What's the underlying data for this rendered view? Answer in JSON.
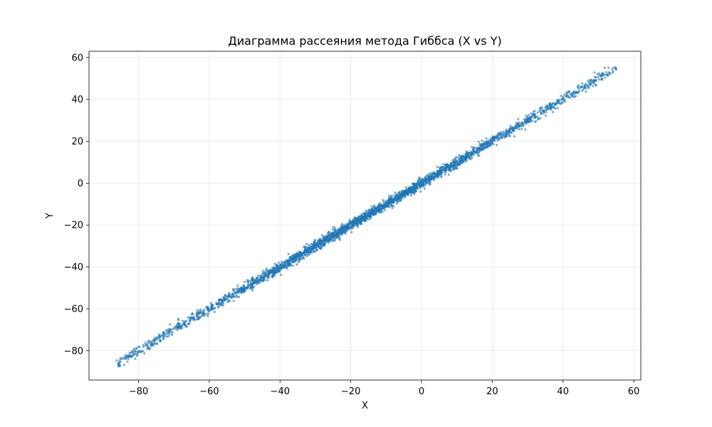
{
  "chart_data": {
    "type": "scatter",
    "title": "Диаграмма рассеяния метода Гиббса (X vs Y)",
    "xlabel": "X",
    "ylabel": "Y",
    "xlim": [
      -94,
      62
    ],
    "ylim": [
      -94,
      63
    ],
    "xticks": [
      -80,
      -60,
      -40,
      -20,
      0,
      20,
      40,
      60
    ],
    "yticks": [
      -80,
      -60,
      -40,
      -20,
      0,
      20,
      40,
      60
    ],
    "xtick_labels": [
      "−80",
      "−60",
      "−40",
      "−20",
      "0",
      "20",
      "40",
      "60"
    ],
    "ytick_labels": [
      "−80",
      "−60",
      "−40",
      "−20",
      "0",
      "20",
      "40",
      "60"
    ],
    "grid": true,
    "marker_color": "#1f77b4",
    "marker_opacity": 0.6,
    "series": [
      {
        "x_range": [
          -86,
          55
        ],
        "relationship": "y ≈ x",
        "approx_spread": 1.5,
        "points": [
          [
            -86.2,
            -84.6
          ],
          [
            -85.1,
            -85.3
          ],
          [
            -84.0,
            -86.8
          ],
          [
            -83.5,
            -82.9
          ],
          [
            -82.1,
            -82.4
          ],
          [
            -80.9,
            -81.6
          ],
          [
            -79.7,
            -78.3
          ],
          [
            -78.8,
            -80.1
          ],
          [
            -78.0,
            -77.5
          ],
          [
            -77.2,
            -78.6
          ],
          [
            -76.1,
            -76.9
          ],
          [
            -74.8,
            -73.7
          ],
          [
            -73.9,
            -75.2
          ],
          [
            -72.5,
            -72.9
          ],
          [
            -71.2,
            -70.4
          ],
          [
            -70.4,
            -71.5
          ],
          [
            -69.1,
            -68.2
          ],
          [
            -68.0,
            -69.4
          ],
          [
            -66.8,
            -65.9
          ],
          [
            -65.9,
            -67.1
          ],
          [
            -64.7,
            -64.3
          ],
          [
            -63.5,
            -62.4
          ],
          [
            -62.6,
            -63.8
          ],
          [
            -61.4,
            -60.5
          ],
          [
            -60.2,
            -61.3
          ],
          [
            -59.1,
            -58.6
          ],
          [
            -58.0,
            -57.2
          ],
          [
            -56.8,
            -58.1
          ],
          [
            -55.7,
            -54.9
          ],
          [
            -54.6,
            -55.8
          ],
          [
            -53.4,
            -52.7
          ],
          [
            -52.3,
            -53.6
          ],
          [
            -51.1,
            -50.2
          ],
          [
            -50.0,
            -51.4
          ],
          [
            -48.9,
            -48.1
          ],
          [
            -47.7,
            -47.9
          ],
          [
            -46.6,
            -45.3
          ],
          [
            -45.4,
            -46.7
          ],
          [
            -44.3,
            -43.8
          ],
          [
            -43.2,
            -44.5
          ],
          [
            -42.0,
            -41.2
          ],
          [
            -40.9,
            -42.3
          ],
          [
            -39.8,
            -39.1
          ],
          [
            -38.6,
            -37.4
          ],
          [
            -37.5,
            -38.8
          ],
          [
            -36.4,
            -35.9
          ],
          [
            -35.2,
            -36.6
          ],
          [
            -34.1,
            -33.3
          ],
          [
            -33.0,
            -34.2
          ],
          [
            -31.8,
            -31.0
          ],
          [
            -30.7,
            -31.9
          ],
          [
            -29.6,
            -28.8
          ],
          [
            -28.4,
            -29.7
          ],
          [
            -27.3,
            -26.5
          ],
          [
            -26.2,
            -27.4
          ],
          [
            -25.0,
            -24.2
          ],
          [
            -23.9,
            -25.1
          ],
          [
            -22.8,
            -21.9
          ],
          [
            -21.6,
            -22.9
          ],
          [
            -20.5,
            -19.8
          ],
          [
            -19.4,
            -20.6
          ],
          [
            -18.2,
            -17.3
          ],
          [
            -17.1,
            -18.4
          ],
          [
            -16.0,
            -15.2
          ],
          [
            -14.8,
            -16.1
          ],
          [
            -13.7,
            -12.9
          ],
          [
            -12.6,
            -13.8
          ],
          [
            -11.4,
            -10.6
          ],
          [
            -10.3,
            -11.5
          ],
          [
            -9.2,
            -8.4
          ],
          [
            -8.0,
            -9.3
          ],
          [
            -6.9,
            -6.1
          ],
          [
            -5.8,
            -7.0
          ],
          [
            -4.6,
            -3.8
          ],
          [
            -3.5,
            -4.7
          ],
          [
            -2.4,
            -1.6
          ],
          [
            -1.2,
            -2.4
          ],
          [
            0.0,
            0.6
          ],
          [
            1.2,
            0.4
          ],
          [
            2.3,
            3.1
          ],
          [
            3.4,
            2.2
          ],
          [
            4.6,
            5.4
          ],
          [
            5.7,
            4.5
          ],
          [
            6.8,
            7.6
          ],
          [
            8.0,
            6.8
          ],
          [
            9.1,
            9.9
          ],
          [
            10.2,
            9.0
          ],
          [
            11.4,
            12.2
          ],
          [
            12.5,
            11.3
          ],
          [
            13.6,
            14.4
          ],
          [
            14.8,
            13.6
          ],
          [
            15.9,
            16.7
          ],
          [
            17.0,
            15.8
          ],
          [
            18.2,
            19.0
          ],
          [
            19.3,
            18.1
          ],
          [
            20.4,
            21.2
          ],
          [
            21.6,
            20.4
          ],
          [
            22.7,
            23.5
          ],
          [
            23.8,
            22.6
          ],
          [
            25.0,
            25.8
          ],
          [
            26.1,
            24.9
          ],
          [
            27.2,
            28.0
          ],
          [
            28.4,
            27.2
          ],
          [
            29.5,
            30.3
          ],
          [
            30.6,
            29.4
          ],
          [
            31.8,
            32.6
          ],
          [
            32.9,
            31.7
          ],
          [
            34.0,
            34.8
          ],
          [
            35.2,
            34.0
          ],
          [
            36.3,
            37.1
          ],
          [
            37.4,
            36.2
          ],
          [
            38.6,
            39.4
          ],
          [
            39.7,
            38.5
          ],
          [
            40.8,
            41.6
          ],
          [
            42.0,
            40.8
          ],
          [
            43.1,
            43.9
          ],
          [
            44.2,
            43.0
          ],
          [
            45.4,
            46.2
          ],
          [
            46.5,
            45.3
          ],
          [
            47.6,
            48.4
          ],
          [
            48.8,
            47.6
          ],
          [
            49.9,
            50.7
          ],
          [
            51.0,
            49.8
          ],
          [
            52.2,
            53.0
          ],
          [
            53.3,
            52.1
          ],
          [
            54.4,
            55.2
          ],
          [
            55.0,
            54.3
          ]
        ]
      }
    ]
  }
}
